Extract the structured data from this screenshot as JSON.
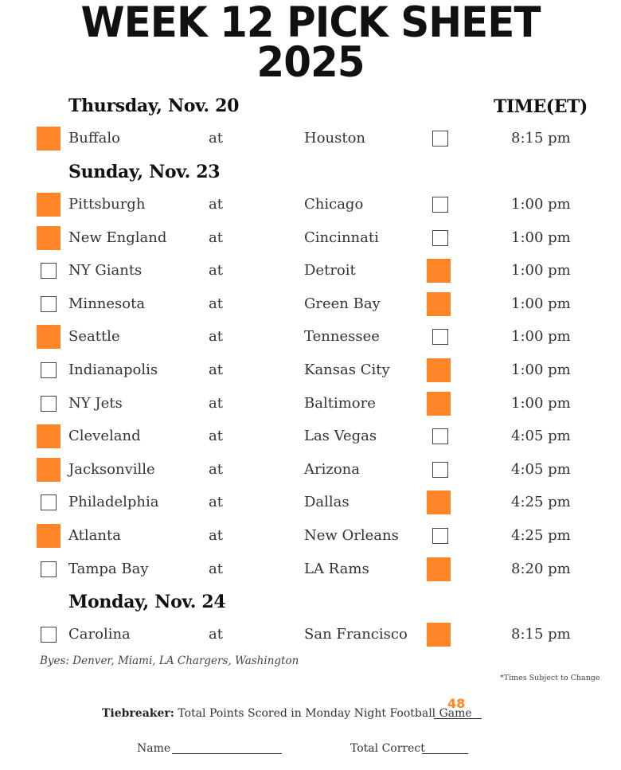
{
  "title": {
    "line1": "WEEK 12 PICK SHEET",
    "line2": "2025"
  },
  "time_header": "TIME(ET)",
  "at_label": "at",
  "sections": [
    {
      "day": "Thursday, Nov. 20",
      "games": [
        {
          "away": "Buffalo",
          "home": "Houston",
          "time": "8:15 pm",
          "pick": "away"
        }
      ]
    },
    {
      "day": "Sunday, Nov. 23",
      "games": [
        {
          "away": "Pittsburgh",
          "home": "Chicago",
          "time": "1:00 pm",
          "pick": "away"
        },
        {
          "away": "New England",
          "home": "Cincinnati",
          "time": "1:00 pm",
          "pick": "away"
        },
        {
          "away": "NY Giants",
          "home": "Detroit",
          "time": "1:00 pm",
          "pick": "home"
        },
        {
          "away": "Minnesota",
          "home": "Green Bay",
          "time": "1:00 pm",
          "pick": "home"
        },
        {
          "away": "Seattle",
          "home": "Tennessee",
          "time": "1:00 pm",
          "pick": "away"
        },
        {
          "away": "Indianapolis",
          "home": "Kansas City",
          "time": "1:00 pm",
          "pick": "home"
        },
        {
          "away": "NY Jets",
          "home": "Baltimore",
          "time": "1:00 pm",
          "pick": "home"
        },
        {
          "away": "Cleveland",
          "home": "Las Vegas",
          "time": "4:05 pm",
          "pick": "away"
        },
        {
          "away": "Jacksonville",
          "home": "Arizona",
          "time": "4:05 pm",
          "pick": "away"
        },
        {
          "away": "Philadelphia",
          "home": "Dallas",
          "time": "4:25 pm",
          "pick": "home"
        },
        {
          "away": "Atlanta",
          "home": "New Orleans",
          "time": "4:25 pm",
          "pick": "away"
        },
        {
          "away": "Tampa Bay",
          "home": "LA Rams",
          "time": "8:20 pm",
          "pick": "home"
        }
      ]
    },
    {
      "day": "Monday, Nov. 24",
      "games": [
        {
          "away": "Carolina",
          "home": "San Francisco",
          "time": "8:15 pm",
          "pick": "home"
        }
      ]
    }
  ],
  "byes": "Byes: Denver, Miami, LA Chargers, Washington",
  "times_note": "*Times Subject to Change",
  "tiebreaker": {
    "label": "Tiebreaker:",
    "text": "Total Points Scored in Monday Night Football Game",
    "value": "48"
  },
  "name_label": "Name",
  "total_correct_label": "Total Correct",
  "colors": {
    "pick_fill": "#ff8527",
    "text": "#222222"
  }
}
